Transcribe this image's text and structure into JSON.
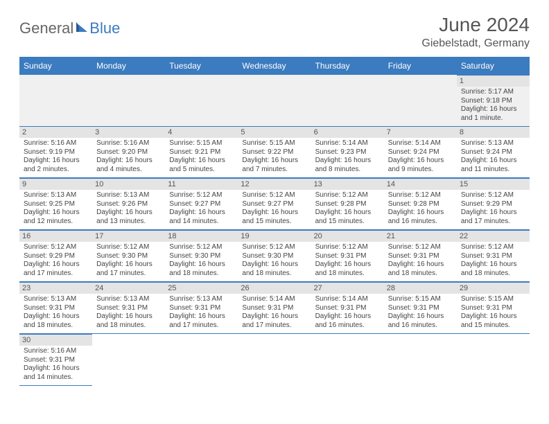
{
  "brand": {
    "part1": "General",
    "part2": "Blue"
  },
  "title": "June 2024",
  "location": "Giebelstadt, Germany",
  "headers": [
    "Sunday",
    "Monday",
    "Tuesday",
    "Wednesday",
    "Thursday",
    "Friday",
    "Saturday"
  ],
  "colors": {
    "header_bg": "#3b7bbf",
    "header_fg": "#ffffff",
    "daynum_bg": "#e4e4e4",
    "text": "#444444",
    "brand_gray": "#666666",
    "brand_blue": "#3b7bbf"
  },
  "weeks": [
    [
      null,
      null,
      null,
      null,
      null,
      null,
      {
        "n": "1",
        "sr": "Sunrise: 5:17 AM",
        "ss": "Sunset: 9:18 PM",
        "d1": "Daylight: 16 hours",
        "d2": "and 1 minute."
      }
    ],
    [
      {
        "n": "2",
        "sr": "Sunrise: 5:16 AM",
        "ss": "Sunset: 9:19 PM",
        "d1": "Daylight: 16 hours",
        "d2": "and 2 minutes."
      },
      {
        "n": "3",
        "sr": "Sunrise: 5:16 AM",
        "ss": "Sunset: 9:20 PM",
        "d1": "Daylight: 16 hours",
        "d2": "and 4 minutes."
      },
      {
        "n": "4",
        "sr": "Sunrise: 5:15 AM",
        "ss": "Sunset: 9:21 PM",
        "d1": "Daylight: 16 hours",
        "d2": "and 5 minutes."
      },
      {
        "n": "5",
        "sr": "Sunrise: 5:15 AM",
        "ss": "Sunset: 9:22 PM",
        "d1": "Daylight: 16 hours",
        "d2": "and 7 minutes."
      },
      {
        "n": "6",
        "sr": "Sunrise: 5:14 AM",
        "ss": "Sunset: 9:23 PM",
        "d1": "Daylight: 16 hours",
        "d2": "and 8 minutes."
      },
      {
        "n": "7",
        "sr": "Sunrise: 5:14 AM",
        "ss": "Sunset: 9:24 PM",
        "d1": "Daylight: 16 hours",
        "d2": "and 9 minutes."
      },
      {
        "n": "8",
        "sr": "Sunrise: 5:13 AM",
        "ss": "Sunset: 9:24 PM",
        "d1": "Daylight: 16 hours",
        "d2": "and 11 minutes."
      }
    ],
    [
      {
        "n": "9",
        "sr": "Sunrise: 5:13 AM",
        "ss": "Sunset: 9:25 PM",
        "d1": "Daylight: 16 hours",
        "d2": "and 12 minutes."
      },
      {
        "n": "10",
        "sr": "Sunrise: 5:13 AM",
        "ss": "Sunset: 9:26 PM",
        "d1": "Daylight: 16 hours",
        "d2": "and 13 minutes."
      },
      {
        "n": "11",
        "sr": "Sunrise: 5:12 AM",
        "ss": "Sunset: 9:27 PM",
        "d1": "Daylight: 16 hours",
        "d2": "and 14 minutes."
      },
      {
        "n": "12",
        "sr": "Sunrise: 5:12 AM",
        "ss": "Sunset: 9:27 PM",
        "d1": "Daylight: 16 hours",
        "d2": "and 15 minutes."
      },
      {
        "n": "13",
        "sr": "Sunrise: 5:12 AM",
        "ss": "Sunset: 9:28 PM",
        "d1": "Daylight: 16 hours",
        "d2": "and 15 minutes."
      },
      {
        "n": "14",
        "sr": "Sunrise: 5:12 AM",
        "ss": "Sunset: 9:28 PM",
        "d1": "Daylight: 16 hours",
        "d2": "and 16 minutes."
      },
      {
        "n": "15",
        "sr": "Sunrise: 5:12 AM",
        "ss": "Sunset: 9:29 PM",
        "d1": "Daylight: 16 hours",
        "d2": "and 17 minutes."
      }
    ],
    [
      {
        "n": "16",
        "sr": "Sunrise: 5:12 AM",
        "ss": "Sunset: 9:29 PM",
        "d1": "Daylight: 16 hours",
        "d2": "and 17 minutes."
      },
      {
        "n": "17",
        "sr": "Sunrise: 5:12 AM",
        "ss": "Sunset: 9:30 PM",
        "d1": "Daylight: 16 hours",
        "d2": "and 17 minutes."
      },
      {
        "n": "18",
        "sr": "Sunrise: 5:12 AM",
        "ss": "Sunset: 9:30 PM",
        "d1": "Daylight: 16 hours",
        "d2": "and 18 minutes."
      },
      {
        "n": "19",
        "sr": "Sunrise: 5:12 AM",
        "ss": "Sunset: 9:30 PM",
        "d1": "Daylight: 16 hours",
        "d2": "and 18 minutes."
      },
      {
        "n": "20",
        "sr": "Sunrise: 5:12 AM",
        "ss": "Sunset: 9:31 PM",
        "d1": "Daylight: 16 hours",
        "d2": "and 18 minutes."
      },
      {
        "n": "21",
        "sr": "Sunrise: 5:12 AM",
        "ss": "Sunset: 9:31 PM",
        "d1": "Daylight: 16 hours",
        "d2": "and 18 minutes."
      },
      {
        "n": "22",
        "sr": "Sunrise: 5:12 AM",
        "ss": "Sunset: 9:31 PM",
        "d1": "Daylight: 16 hours",
        "d2": "and 18 minutes."
      }
    ],
    [
      {
        "n": "23",
        "sr": "Sunrise: 5:13 AM",
        "ss": "Sunset: 9:31 PM",
        "d1": "Daylight: 16 hours",
        "d2": "and 18 minutes."
      },
      {
        "n": "24",
        "sr": "Sunrise: 5:13 AM",
        "ss": "Sunset: 9:31 PM",
        "d1": "Daylight: 16 hours",
        "d2": "and 18 minutes."
      },
      {
        "n": "25",
        "sr": "Sunrise: 5:13 AM",
        "ss": "Sunset: 9:31 PM",
        "d1": "Daylight: 16 hours",
        "d2": "and 17 minutes."
      },
      {
        "n": "26",
        "sr": "Sunrise: 5:14 AM",
        "ss": "Sunset: 9:31 PM",
        "d1": "Daylight: 16 hours",
        "d2": "and 17 minutes."
      },
      {
        "n": "27",
        "sr": "Sunrise: 5:14 AM",
        "ss": "Sunset: 9:31 PM",
        "d1": "Daylight: 16 hours",
        "d2": "and 16 minutes."
      },
      {
        "n": "28",
        "sr": "Sunrise: 5:15 AM",
        "ss": "Sunset: 9:31 PM",
        "d1": "Daylight: 16 hours",
        "d2": "and 16 minutes."
      },
      {
        "n": "29",
        "sr": "Sunrise: 5:15 AM",
        "ss": "Sunset: 9:31 PM",
        "d1": "Daylight: 16 hours",
        "d2": "and 15 minutes."
      }
    ],
    [
      {
        "n": "30",
        "sr": "Sunrise: 5:16 AM",
        "ss": "Sunset: 9:31 PM",
        "d1": "Daylight: 16 hours",
        "d2": "and 14 minutes."
      },
      null,
      null,
      null,
      null,
      null,
      null
    ]
  ]
}
